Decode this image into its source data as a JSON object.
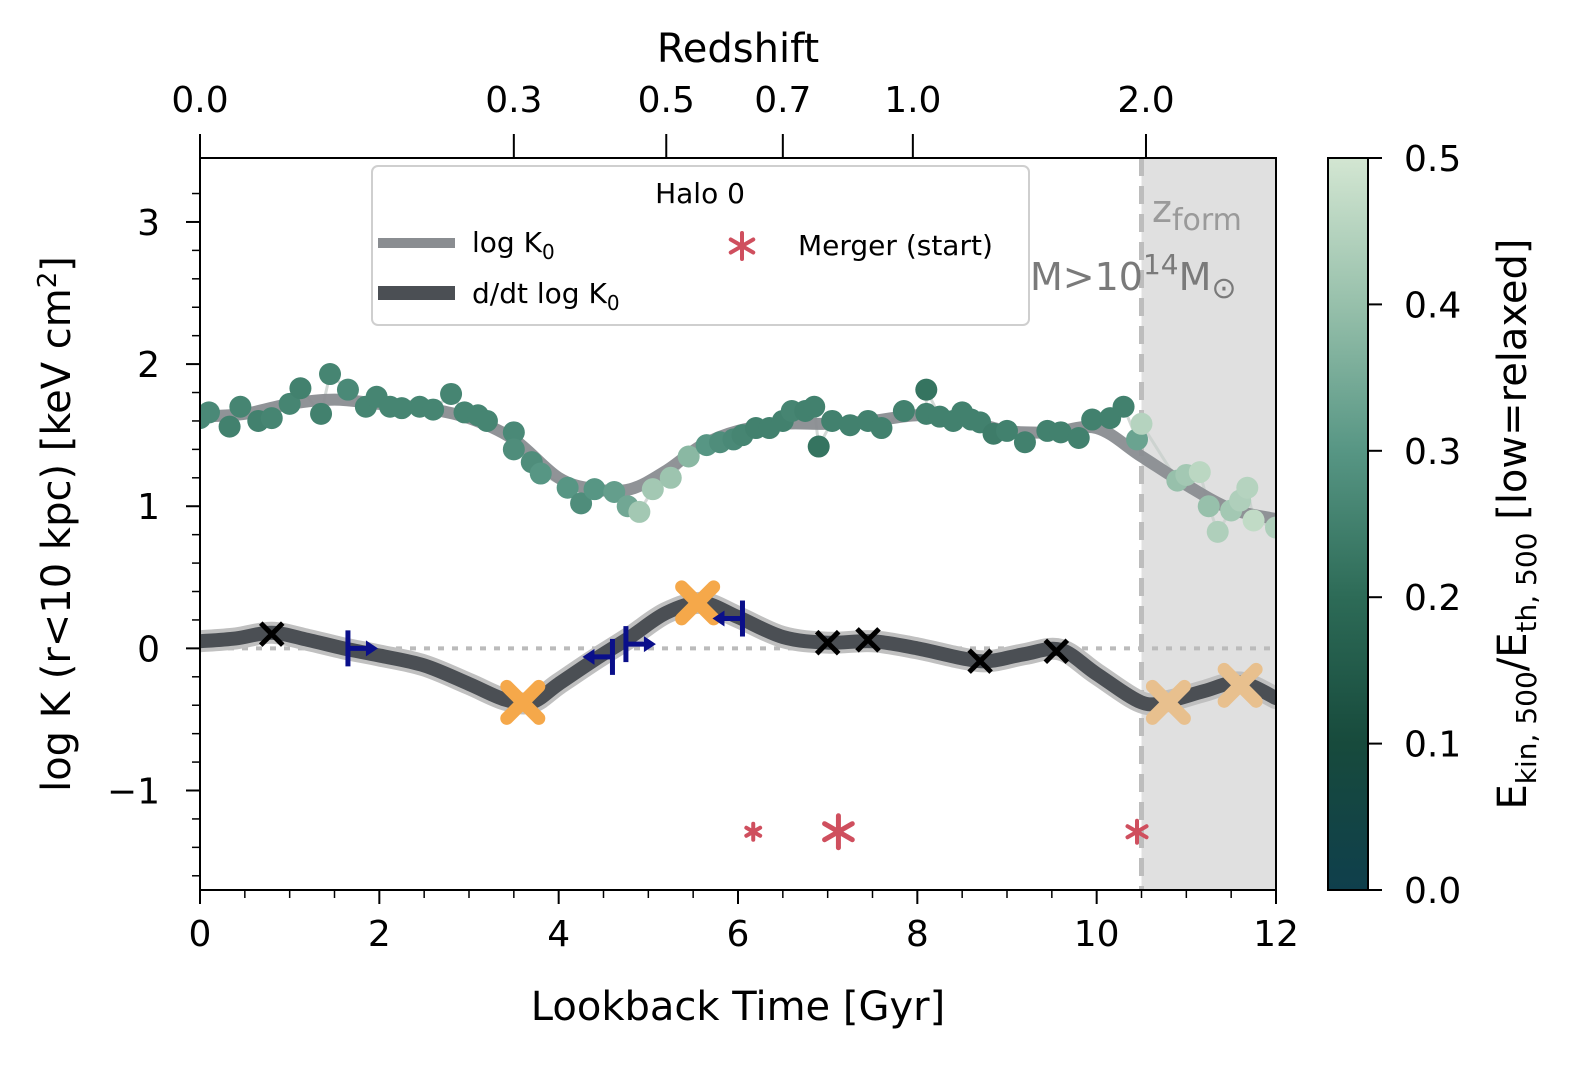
{
  "chart_data": {
    "type": "scatter",
    "legend": {
      "title": "Halo 0",
      "placement": "top-center",
      "entries": [
        {
          "label_main": "log K",
          "label_sub": "0",
          "prefix": "",
          "style": "line",
          "color": "#8a8d91"
        },
        {
          "label_main": "log K",
          "label_sub": "0",
          "prefix": "d/dt ",
          "style": "line",
          "color": "#4b4f54"
        },
        {
          "label": "Merger (start)",
          "style": "star",
          "color": "#cf4f5e"
        }
      ]
    },
    "x_axis": {
      "label": "Lookback Time [Gyr]",
      "range": [
        0,
        12
      ],
      "ticks": [
        "0",
        "2",
        "4",
        "6",
        "8",
        "10",
        "12"
      ],
      "tick_values": [
        0,
        2,
        4,
        6,
        8,
        10,
        12
      ]
    },
    "top_axis": {
      "label": "Redshift",
      "ticks": [
        "0.0",
        "0.3",
        "0.5",
        "0.7",
        "1.0",
        "2.0"
      ],
      "tick_positions_gyr": [
        0.0,
        3.5,
        5.2,
        6.5,
        7.95,
        10.55
      ]
    },
    "y_axis": {
      "label_main": "log K (r<10 kpc) [keV cm",
      "label_sup": "2",
      "label_end": "]",
      "range": [
        -1.7,
        3.45
      ],
      "ticks": [
        "−1",
        "0",
        "1",
        "2",
        "3"
      ],
      "tick_values": [
        -1,
        0,
        1,
        2,
        3
      ]
    },
    "colorbar": {
      "label_main": "E",
      "label_sub1": "kin, 500",
      "label_mid": "/E",
      "label_sub2": "th, 500",
      "label_end": " [low=relaxed]",
      "range": [
        0,
        0.5
      ],
      "ticks": [
        "0.0",
        "0.1",
        "0.2",
        "0.3",
        "0.4",
        "0.5"
      ],
      "tick_values": [
        0.0,
        0.1,
        0.2,
        0.3,
        0.4,
        0.5
      ],
      "colors": [
        "#0f3f4c",
        "#174a3c",
        "#2d6b57",
        "#579684",
        "#97c0ab",
        "#d3e6d2"
      ]
    },
    "annotations": {
      "zform_main": "z",
      "zform_sub": "form",
      "mass_main": "M>10",
      "mass_sup": "14",
      "mass_end": "M",
      "mass_sub": "⊙",
      "zform_time": 10.5,
      "shaded_range": [
        10.5,
        12
      ]
    },
    "scatter_logK": [
      {
        "t": 0.0,
        "y": 1.62,
        "c": 0.27
      },
      {
        "t": 0.1,
        "y": 1.66,
        "c": 0.27
      },
      {
        "t": 0.33,
        "y": 1.56,
        "c": 0.25
      },
      {
        "t": 0.45,
        "y": 1.7,
        "c": 0.26
      },
      {
        "t": 0.65,
        "y": 1.6,
        "c": 0.25
      },
      {
        "t": 0.8,
        "y": 1.62,
        "c": 0.26
      },
      {
        "t": 1.0,
        "y": 1.72,
        "c": 0.26
      },
      {
        "t": 1.12,
        "y": 1.83,
        "c": 0.25
      },
      {
        "t": 1.35,
        "y": 1.65,
        "c": 0.25
      },
      {
        "t": 1.45,
        "y": 1.93,
        "c": 0.26
      },
      {
        "t": 1.65,
        "y": 1.82,
        "c": 0.27
      },
      {
        "t": 1.85,
        "y": 1.7,
        "c": 0.26
      },
      {
        "t": 1.97,
        "y": 1.77,
        "c": 0.26
      },
      {
        "t": 2.12,
        "y": 1.7,
        "c": 0.26
      },
      {
        "t": 2.25,
        "y": 1.69,
        "c": 0.26
      },
      {
        "t": 2.45,
        "y": 1.7,
        "c": 0.26
      },
      {
        "t": 2.6,
        "y": 1.68,
        "c": 0.26
      },
      {
        "t": 2.8,
        "y": 1.79,
        "c": 0.26
      },
      {
        "t": 2.95,
        "y": 1.66,
        "c": 0.26
      },
      {
        "t": 3.1,
        "y": 1.64,
        "c": 0.26
      },
      {
        "t": 3.2,
        "y": 1.6,
        "c": 0.26
      },
      {
        "t": 3.5,
        "y": 1.52,
        "c": 0.27
      },
      {
        "t": 3.5,
        "y": 1.4,
        "c": 0.28
      },
      {
        "t": 3.7,
        "y": 1.31,
        "c": 0.28
      },
      {
        "t": 3.8,
        "y": 1.23,
        "c": 0.3
      },
      {
        "t": 4.1,
        "y": 1.13,
        "c": 0.3
      },
      {
        "t": 4.25,
        "y": 1.02,
        "c": 0.28
      },
      {
        "t": 4.4,
        "y": 1.12,
        "c": 0.3
      },
      {
        "t": 4.62,
        "y": 1.1,
        "c": 0.32
      },
      {
        "t": 4.77,
        "y": 1.0,
        "c": 0.34
      },
      {
        "t": 4.9,
        "y": 0.96,
        "c": 0.42
      },
      {
        "t": 5.05,
        "y": 1.12,
        "c": 0.42
      },
      {
        "t": 5.25,
        "y": 1.2,
        "c": 0.41
      },
      {
        "t": 5.45,
        "y": 1.35,
        "c": 0.38
      },
      {
        "t": 5.65,
        "y": 1.43,
        "c": 0.3
      },
      {
        "t": 5.8,
        "y": 1.45,
        "c": 0.28
      },
      {
        "t": 5.95,
        "y": 1.47,
        "c": 0.27
      },
      {
        "t": 6.05,
        "y": 1.5,
        "c": 0.26
      },
      {
        "t": 6.2,
        "y": 1.55,
        "c": 0.25
      },
      {
        "t": 6.35,
        "y": 1.55,
        "c": 0.25
      },
      {
        "t": 6.5,
        "y": 1.6,
        "c": 0.25
      },
      {
        "t": 6.6,
        "y": 1.67,
        "c": 0.26
      },
      {
        "t": 6.75,
        "y": 1.67,
        "c": 0.25
      },
      {
        "t": 6.85,
        "y": 1.7,
        "c": 0.25
      },
      {
        "t": 6.9,
        "y": 1.42,
        "c": 0.22
      },
      {
        "t": 7.05,
        "y": 1.6,
        "c": 0.25
      },
      {
        "t": 7.25,
        "y": 1.57,
        "c": 0.25
      },
      {
        "t": 7.45,
        "y": 1.6,
        "c": 0.25
      },
      {
        "t": 7.6,
        "y": 1.55,
        "c": 0.25
      },
      {
        "t": 7.85,
        "y": 1.67,
        "c": 0.25
      },
      {
        "t": 8.1,
        "y": 1.65,
        "c": 0.25
      },
      {
        "t": 8.1,
        "y": 1.82,
        "c": 0.22
      },
      {
        "t": 8.25,
        "y": 1.63,
        "c": 0.25
      },
      {
        "t": 8.4,
        "y": 1.6,
        "c": 0.25
      },
      {
        "t": 8.5,
        "y": 1.66,
        "c": 0.25
      },
      {
        "t": 8.6,
        "y": 1.61,
        "c": 0.25
      },
      {
        "t": 8.7,
        "y": 1.59,
        "c": 0.25
      },
      {
        "t": 8.85,
        "y": 1.51,
        "c": 0.24
      },
      {
        "t": 9.0,
        "y": 1.53,
        "c": 0.25
      },
      {
        "t": 9.2,
        "y": 1.45,
        "c": 0.25
      },
      {
        "t": 9.45,
        "y": 1.53,
        "c": 0.25
      },
      {
        "t": 9.6,
        "y": 1.52,
        "c": 0.25
      },
      {
        "t": 9.8,
        "y": 1.48,
        "c": 0.25
      },
      {
        "t": 9.95,
        "y": 1.61,
        "c": 0.25
      },
      {
        "t": 10.15,
        "y": 1.62,
        "c": 0.25
      },
      {
        "t": 10.3,
        "y": 1.7,
        "c": 0.25
      },
      {
        "t": 10.45,
        "y": 1.47,
        "c": 0.33
      },
      {
        "t": 10.5,
        "y": 1.58,
        "c": 0.45
      },
      {
        "t": 10.9,
        "y": 1.18,
        "c": 0.4
      },
      {
        "t": 11.0,
        "y": 1.22,
        "c": 0.42
      },
      {
        "t": 11.15,
        "y": 1.24,
        "c": 0.46
      },
      {
        "t": 11.25,
        "y": 1.0,
        "c": 0.4
      },
      {
        "t": 11.35,
        "y": 0.82,
        "c": 0.44
      },
      {
        "t": 11.5,
        "y": 0.97,
        "c": 0.42
      },
      {
        "t": 11.6,
        "y": 1.04,
        "c": 0.44
      },
      {
        "t": 11.68,
        "y": 1.13,
        "c": 0.45
      },
      {
        "t": 11.75,
        "y": 0.9,
        "c": 0.47
      },
      {
        "t": 12.0,
        "y": 0.85,
        "c": 0.44
      }
    ],
    "series": [
      {
        "name": "log K0",
        "color": "#8a8d91",
        "x": [
          0,
          0.5,
          1.0,
          1.5,
          2.0,
          2.5,
          3.0,
          3.5,
          4.0,
          4.4,
          4.8,
          5.2,
          5.6,
          6.0,
          6.5,
          7.0,
          7.5,
          8.0,
          8.5,
          9.0,
          9.5,
          10.0,
          10.5,
          11.0,
          11.5,
          12.0
        ],
        "y": [
          1.63,
          1.65,
          1.72,
          1.75,
          1.72,
          1.69,
          1.62,
          1.47,
          1.2,
          1.12,
          1.12,
          1.25,
          1.43,
          1.53,
          1.58,
          1.58,
          1.6,
          1.64,
          1.61,
          1.53,
          1.52,
          1.55,
          1.35,
          1.15,
          0.98,
          0.91
        ]
      },
      {
        "name": "d/dt log K0",
        "color": "#4b4f54",
        "x": [
          0,
          0.4,
          0.8,
          1.2,
          1.6,
          2.0,
          2.5,
          3.0,
          3.4,
          3.7,
          4.0,
          4.4,
          4.8,
          5.2,
          5.6,
          6.0,
          6.5,
          7.0,
          7.5,
          8.0,
          8.5,
          8.8,
          9.2,
          9.6,
          10.0,
          10.5,
          10.8,
          11.2,
          11.6,
          12.0
        ],
        "y": [
          0.05,
          0.07,
          0.11,
          0.06,
          0.0,
          -0.05,
          -0.12,
          -0.25,
          -0.36,
          -0.38,
          -0.25,
          -0.08,
          0.08,
          0.25,
          0.32,
          0.22,
          0.08,
          0.04,
          0.05,
          0.0,
          -0.07,
          -0.09,
          -0.04,
          -0.01,
          -0.18,
          -0.38,
          -0.37,
          -0.3,
          -0.24,
          -0.35
        ]
      }
    ],
    "black_x_markers": [
      {
        "t": 0.8,
        "y": 0.1
      },
      {
        "t": 7.0,
        "y": 0.04
      },
      {
        "t": 7.45,
        "y": 0.06
      },
      {
        "t": 8.7,
        "y": -0.09
      },
      {
        "t": 9.55,
        "y": -0.02
      }
    ],
    "orange_x_markers": [
      {
        "t": 3.6,
        "y": -0.38,
        "light": false
      },
      {
        "t": 5.55,
        "y": 0.32,
        "light": false
      },
      {
        "t": 10.8,
        "y": -0.38,
        "light": true
      },
      {
        "t": 11.6,
        "y": -0.26,
        "light": true
      }
    ],
    "arrow_markers": [
      {
        "t": 1.65,
        "y": 0.0,
        "dir": "right"
      },
      {
        "t": 4.6,
        "y": -0.06,
        "dir": "left"
      },
      {
        "t": 4.75,
        "y": 0.03,
        "dir": "right"
      },
      {
        "t": 6.05,
        "y": 0.21,
        "dir": "left"
      }
    ],
    "merger_stars": [
      {
        "t": 6.17,
        "y": -1.29,
        "size": "small"
      },
      {
        "t": 7.12,
        "y": -1.29,
        "size": "large"
      },
      {
        "t": 10.45,
        "y": -1.29,
        "size": "medium"
      }
    ]
  }
}
